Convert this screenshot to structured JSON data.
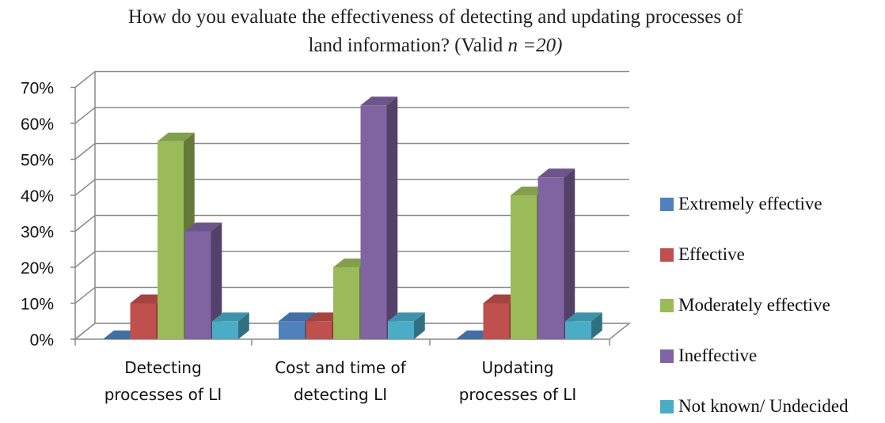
{
  "chart_data": {
    "type": "bar",
    "title_line1": "How do you evaluate the effectiveness of detecting and updating processes of",
    "title_line2_prefix": "land information? (Valid ",
    "title_line2_italic": "n =20)",
    "categories": [
      [
        "Detecting",
        "processes of LI"
      ],
      [
        "Cost and time of",
        "detecting LI"
      ],
      [
        "Updating",
        "processes of LI"
      ]
    ],
    "series": [
      {
        "name": "Extremely effective",
        "values": [
          0,
          5,
          0
        ],
        "color": "#4F81BD"
      },
      {
        "name": "Effective",
        "values": [
          10,
          5,
          10
        ],
        "color": "#C0504D"
      },
      {
        "name": "Moderately effective",
        "values": [
          55,
          20,
          40
        ],
        "color": "#9BBB59"
      },
      {
        "name": "Ineffective",
        "values": [
          30,
          65,
          45
        ],
        "color": "#8064A2"
      },
      {
        "name": "Not known/ Undecided",
        "values": [
          5,
          5,
          5
        ],
        "color": "#4BACC6"
      }
    ],
    "yticks": [
      "0%",
      "10%",
      "20%",
      "30%",
      "40%",
      "50%",
      "60%",
      "70%"
    ],
    "ylim": [
      0,
      70
    ],
    "legend_position": "right",
    "grid": true,
    "three_d": true
  }
}
